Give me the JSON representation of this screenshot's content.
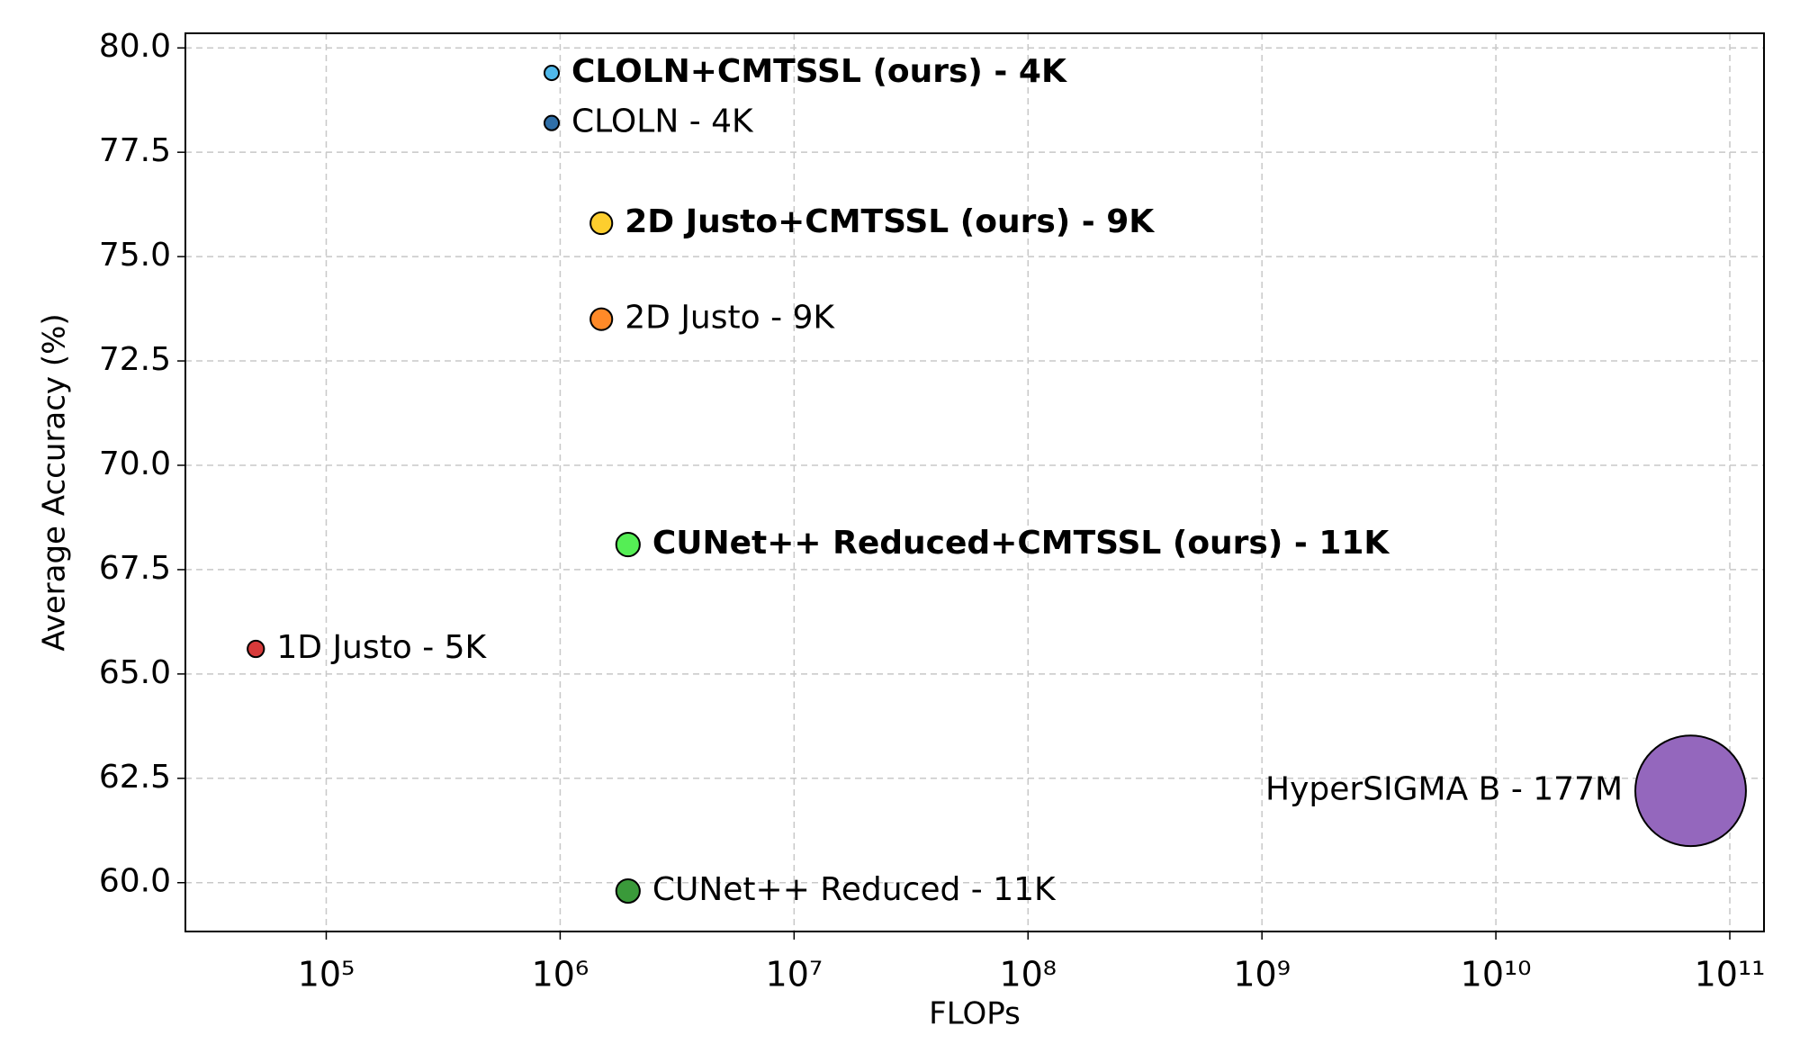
{
  "chart_data": {
    "type": "scatter",
    "xlabel": "FLOPs",
    "ylabel": "Average Accuracy (%)",
    "xscale": "log",
    "grid": true,
    "xlim": [
      25000,
      140000000000
    ],
    "ylim": [
      58.83,
      80.35
    ],
    "xticks": [
      {
        "value": 100000,
        "label": "10⁵"
      },
      {
        "value": 1000000,
        "label": "10⁶"
      },
      {
        "value": 10000000,
        "label": "10⁷"
      },
      {
        "value": 100000000,
        "label": "10⁸"
      },
      {
        "value": 1000000000,
        "label": "10⁹"
      },
      {
        "value": 10000000000,
        "label": "10¹⁰"
      },
      {
        "value": 100000000000,
        "label": "10¹¹"
      }
    ],
    "yticks": [
      {
        "value": 60,
        "label": "60.0"
      },
      {
        "value": 62.5,
        "label": "62.5"
      },
      {
        "value": 65,
        "label": "65.0"
      },
      {
        "value": 67.5,
        "label": "67.5"
      },
      {
        "value": 70,
        "label": "70.0"
      },
      {
        "value": 72.5,
        "label": "72.5"
      },
      {
        "value": 75,
        "label": "75.0"
      },
      {
        "value": 77.5,
        "label": "77.5"
      },
      {
        "value": 80,
        "label": "80.0"
      }
    ],
    "points": [
      {
        "label": "CLOLN+CMTSSL (ours) - 4K",
        "x": 920000,
        "y": 79.4,
        "size": 4000,
        "color": "#4fb8ea",
        "bold": true
      },
      {
        "label": "CLOLN - 4K",
        "x": 920000,
        "y": 78.2,
        "size": 4000,
        "color": "#2f6fa8",
        "bold": false
      },
      {
        "label": "2D Justo+CMTSSL (ours) - 9K",
        "x": 1500000,
        "y": 75.8,
        "size": 9000,
        "color": "#fdce2e",
        "bold": true
      },
      {
        "label": "2D Justo - 9K",
        "x": 1500000,
        "y": 73.5,
        "size": 9000,
        "color": "#ff8a28",
        "bold": false
      },
      {
        "label": "CUNet++ Reduced+CMTSSL (ours) - 11K",
        "x": 1950000,
        "y": 68.1,
        "size": 11000,
        "color": "#55ee55",
        "bold": true
      },
      {
        "label": "1D Justo - 5K",
        "x": 50000,
        "y": 65.6,
        "size": 5000,
        "color": "#d63a3a",
        "bold": false
      },
      {
        "label": "HyperSIGMA B - 177M",
        "x": 68000000000,
        "y": 62.2,
        "size": 177000000,
        "color": "#9467bd",
        "bold": false
      },
      {
        "label": "CUNet++ Reduced - 11K",
        "x": 1950000,
        "y": 59.8,
        "size": 11000,
        "color": "#3a9a3a",
        "bold": false
      }
    ]
  }
}
